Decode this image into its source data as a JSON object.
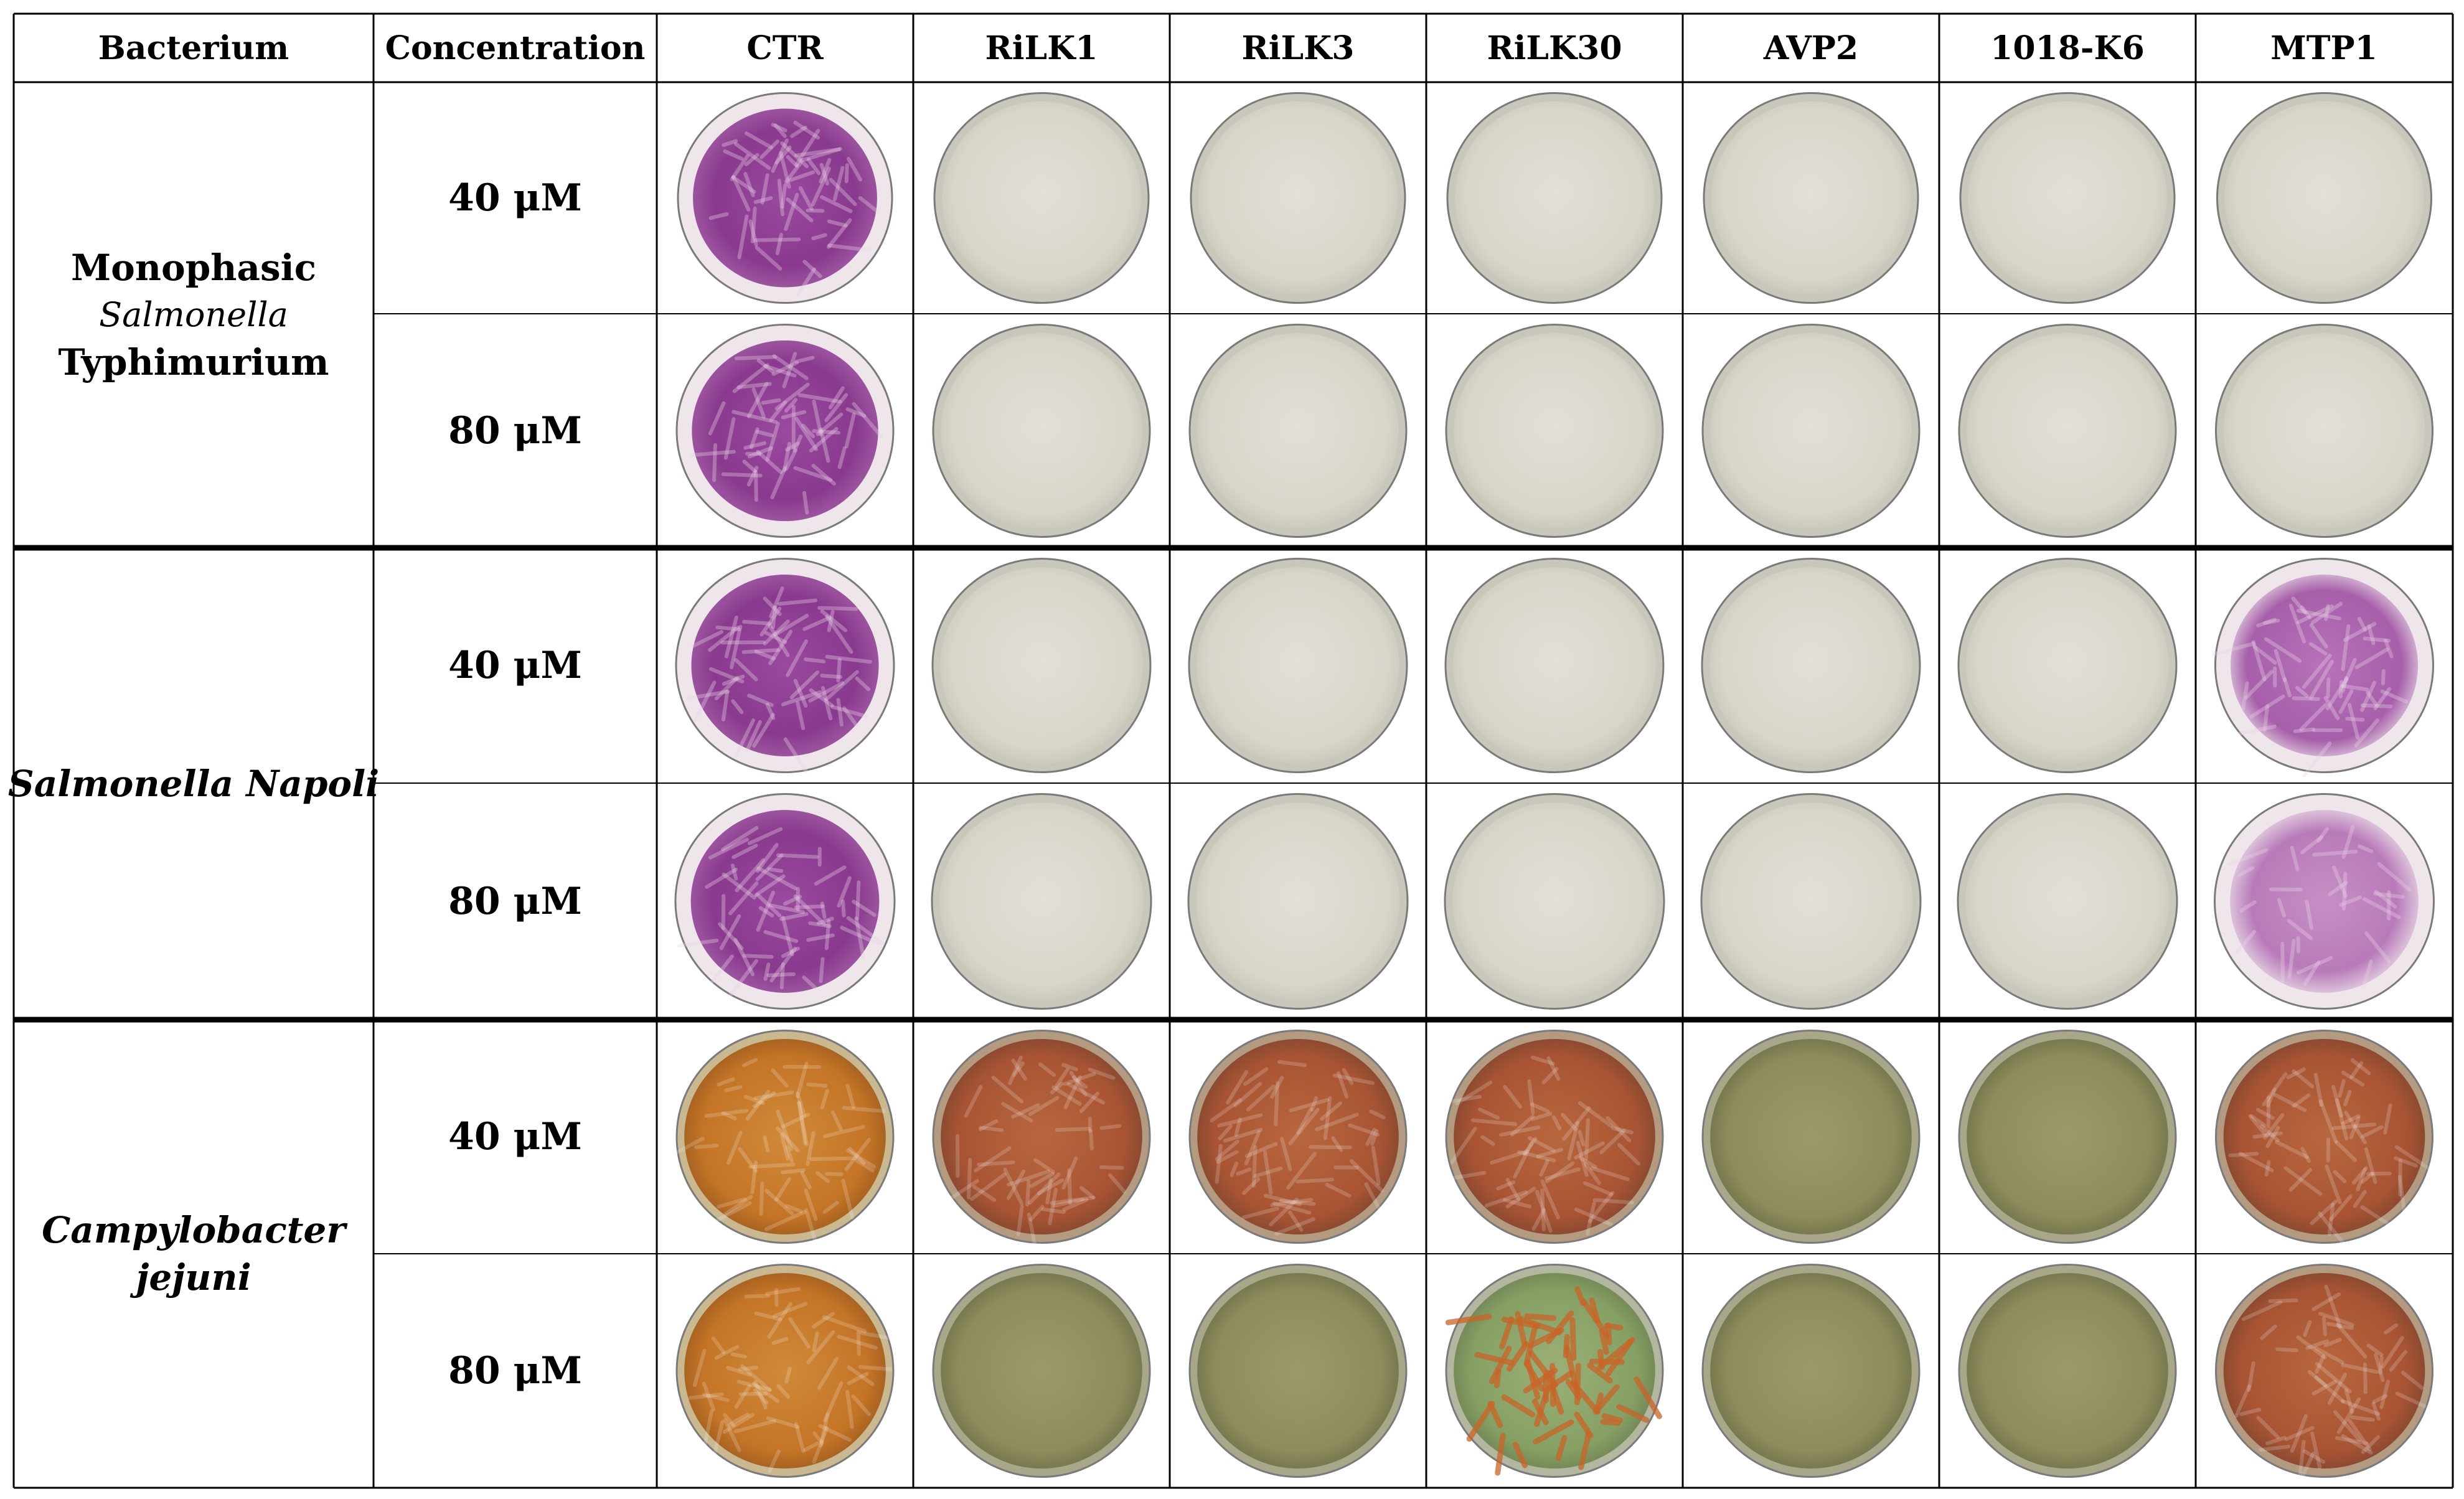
{
  "table": {
    "header": {
      "bacterium": "Bacterium",
      "concentration": "Concentration",
      "treatments": [
        "CTR",
        "RiLK1",
        "RiLK3",
        "RiLK30",
        "AVP2",
        "1018-K6",
        "MTP1"
      ]
    },
    "groups": [
      {
        "bacterium_lines": [
          "Monophasic",
          "Salmonella",
          "Typhimurium"
        ],
        "rows": [
          {
            "concentration": "40 μM",
            "plates": [
              "purple-growth",
              "clear",
              "clear",
              "clear",
              "clear",
              "clear",
              "clear"
            ]
          },
          {
            "concentration": "80 μM",
            "plates": [
              "purple-growth",
              "clear",
              "clear",
              "clear",
              "clear",
              "clear",
              "clear"
            ]
          }
        ]
      },
      {
        "bacterium_lines": [
          "Salmonella Napoli"
        ],
        "rows": [
          {
            "concentration": "40 μM",
            "plates": [
              "purple-growth",
              "clear",
              "clear",
              "clear",
              "clear",
              "clear",
              "purple-partial"
            ]
          },
          {
            "concentration": "80 μM",
            "plates": [
              "purple-growth",
              "clear",
              "clear",
              "clear",
              "clear",
              "clear",
              "purple-sparse"
            ]
          }
        ]
      },
      {
        "bacterium_lines": [
          "Campylobacter",
          "jejuni"
        ],
        "rows": [
          {
            "concentration": "40 μM",
            "plates": [
              "orange-growth",
              "red-brown-growth",
              "red-brown-growth",
              "red-brown-growth",
              "olive-clear",
              "olive-clear",
              "red-brown-growth"
            ]
          },
          {
            "concentration": "80 μM",
            "plates": [
              "orange-growth",
              "olive-clear",
              "olive-clear",
              "green-spotted",
              "olive-clear",
              "olive-clear",
              "red-brown-growth"
            ]
          }
        ]
      }
    ]
  },
  "colors": {
    "purple": "#8b3a8f",
    "clear_agar": "#dcdad0",
    "orange": "#c8792a",
    "red_brown": "#b05a34",
    "olive": "#8a8a5a",
    "green": "#8aa065"
  }
}
